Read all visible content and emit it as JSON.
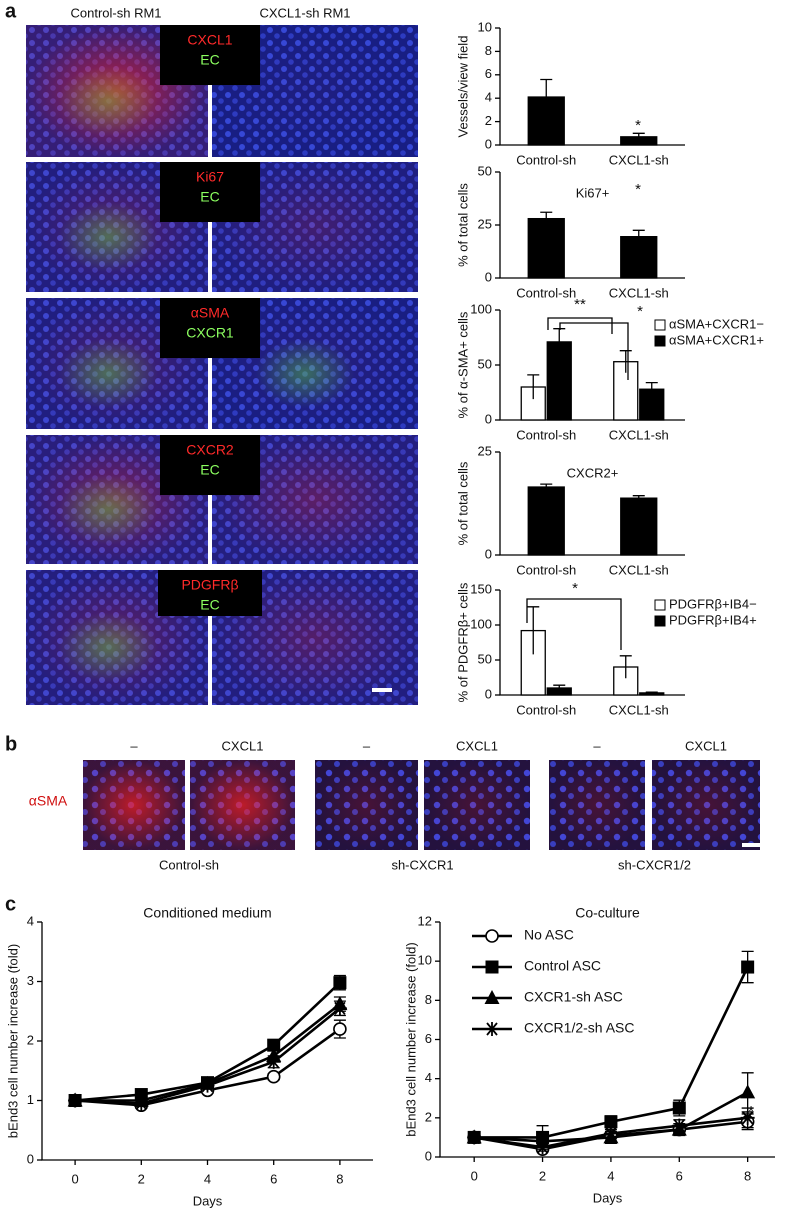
{
  "panels": {
    "a": {
      "label": "a",
      "columns": [
        "Control-sh RM1",
        "CXCL1-sh RM1"
      ],
      "stains": [
        [
          "CXCL1",
          "EC"
        ],
        [
          "Ki67",
          "EC"
        ],
        [
          "αSMA",
          "CXCR1"
        ],
        [
          "CXCR2",
          "EC"
        ],
        [
          "PDGFRβ",
          "EC"
        ]
      ]
    },
    "b": {
      "label": "b",
      "stain": "αSMA",
      "groups": [
        {
          "name": "Control-sh",
          "conditions": [
            "–",
            "CXCL1"
          ]
        },
        {
          "name": "sh-CXCR1",
          "conditions": [
            "–",
            "CXCL1"
          ]
        },
        {
          "name": "sh-CXCR1/2",
          "conditions": [
            "–",
            "CXCL1"
          ]
        }
      ]
    },
    "c": {
      "label": "c"
    }
  },
  "chart_data": [
    {
      "type": "bar",
      "ylabel": "Vessels/view field",
      "categories": [
        "Control-sh",
        "CXCL1-sh"
      ],
      "values": [
        4.1,
        0.7
      ],
      "errors": [
        1.5,
        0.3
      ],
      "color": "#000000",
      "ylim": [
        0,
        10
      ],
      "yticks": [
        0,
        2,
        4,
        6,
        8,
        10
      ],
      "annotations": [
        "*"
      ]
    },
    {
      "type": "bar",
      "title": "Ki67+",
      "ylabel": "% of total cells",
      "categories": [
        "Control-sh",
        "CXCL1-sh"
      ],
      "values": [
        28,
        19.5
      ],
      "errors": [
        3,
        3
      ],
      "color": "#000000",
      "ylim": [
        0,
        50
      ],
      "yticks": [
        0,
        25,
        50
      ],
      "annotations": [
        "*"
      ]
    },
    {
      "type": "bar",
      "ylabel": "% of α-SMA+ cells",
      "categories": [
        "Control-sh",
        "CXCL1-sh"
      ],
      "series": [
        {
          "name": "αSMA+CXCR1−",
          "color": "#ffffff",
          "values": [
            30,
            53
          ],
          "errors": [
            11,
            10
          ]
        },
        {
          "name": "αSMA+CXCR1+",
          "color": "#000000",
          "values": [
            71,
            28
          ],
          "errors": [
            12,
            6
          ]
        }
      ],
      "ylim": [
        0,
        100
      ],
      "yticks": [
        0,
        50,
        100
      ],
      "legend": "right",
      "annotations": [
        "**",
        "*"
      ]
    },
    {
      "type": "bar",
      "title": "CXCR2+",
      "ylabel": "% of total cells",
      "categories": [
        "Control-sh",
        "CXCL1-sh"
      ],
      "values": [
        16.5,
        13.8
      ],
      "errors": [
        0.7,
        0.6
      ],
      "color": "#000000",
      "ylim": [
        0,
        25
      ],
      "yticks": [
        0,
        25
      ]
    },
    {
      "type": "bar",
      "ylabel": "% of  PDGFRβ+ cells",
      "categories": [
        "Control-sh",
        "CXCL1-sh"
      ],
      "series": [
        {
          "name": "PDGFRβ+IB4−",
          "color": "#ffffff",
          "values": [
            92,
            40
          ],
          "errors": [
            34,
            16
          ]
        },
        {
          "name": "PDGFRβ+IB4+",
          "color": "#000000",
          "values": [
            10,
            3
          ],
          "errors": [
            4,
            1
          ]
        }
      ],
      "ylim": [
        0,
        150
      ],
      "yticks": [
        0,
        50,
        100,
        150
      ],
      "legend": "right",
      "annotations": [
        "*"
      ]
    },
    {
      "type": "line",
      "title": "Conditioned medium",
      "xlabel": "Days",
      "ylabel": "bEnd3 cell number increase (fold)",
      "x": [
        0,
        2,
        4,
        6,
        8
      ],
      "xlim": [
        -1,
        9
      ],
      "xticks": [
        0,
        2,
        4,
        6,
        8
      ],
      "ylim": [
        0,
        4
      ],
      "yticks": [
        0,
        1,
        2,
        3,
        4
      ],
      "series": [
        {
          "marker": "o",
          "color": "#000000",
          "values": [
            1,
            0.92,
            1.17,
            1.4,
            2.2
          ],
          "errors": [
            0.05,
            0.05,
            0.05,
            0.05,
            0.15
          ]
        },
        {
          "marker": "s",
          "color": "#000000",
          "values": [
            1,
            1.1,
            1.3,
            1.93,
            2.98
          ],
          "errors": [
            0.05,
            0.05,
            0.05,
            0.08,
            0.12
          ]
        },
        {
          "marker": "^",
          "color": "#000000",
          "values": [
            1,
            1.0,
            1.28,
            1.75,
            2.62
          ],
          "errors": [
            0.05,
            0.05,
            0.05,
            0.1,
            0.12
          ]
        },
        {
          "marker": "*",
          "color": "#000000",
          "values": [
            1,
            0.95,
            1.25,
            1.65,
            2.55
          ],
          "errors": [
            0.05,
            0.05,
            0.05,
            0.1,
            0.12
          ]
        }
      ]
    },
    {
      "type": "line",
      "title": "Co-culture",
      "xlabel": "Days",
      "ylabel": "bEnd3 cell number increase (fold)",
      "x": [
        0,
        2,
        4,
        6,
        8
      ],
      "xlim": [
        -1,
        8.8
      ],
      "xticks": [
        0,
        2,
        4,
        6,
        8
      ],
      "ylim": [
        0,
        12
      ],
      "yticks": [
        0,
        2,
        4,
        6,
        8,
        10,
        12
      ],
      "legend": "upper left",
      "annotations": [
        "*"
      ],
      "series": [
        {
          "name": "No ASC",
          "marker": "o",
          "color": "#000000",
          "values": [
            1,
            0.4,
            1.1,
            1.4,
            1.8
          ],
          "errors": [
            0.1,
            0.1,
            0.1,
            0.2,
            0.4
          ]
        },
        {
          "name": "Control ASC",
          "marker": "s",
          "color": "#000000",
          "values": [
            1,
            1.0,
            1.8,
            2.5,
            9.7
          ],
          "errors": [
            0.1,
            0.6,
            0.3,
            0.4,
            0.8
          ]
        },
        {
          "name": "CXCR1-sh ASC",
          "marker": "^",
          "color": "#000000",
          "values": [
            1,
            0.8,
            1.0,
            1.4,
            3.3
          ],
          "errors": [
            0.1,
            0.3,
            0.3,
            0.3,
            1.0
          ]
        },
        {
          "name": "CXCR1/2-sh ASC",
          "marker": "*",
          "color": "#000000",
          "values": [
            1,
            0.5,
            1.2,
            1.6,
            2.0
          ],
          "errors": [
            0.1,
            0.2,
            0.2,
            0.3,
            0.5
          ]
        }
      ]
    }
  ]
}
